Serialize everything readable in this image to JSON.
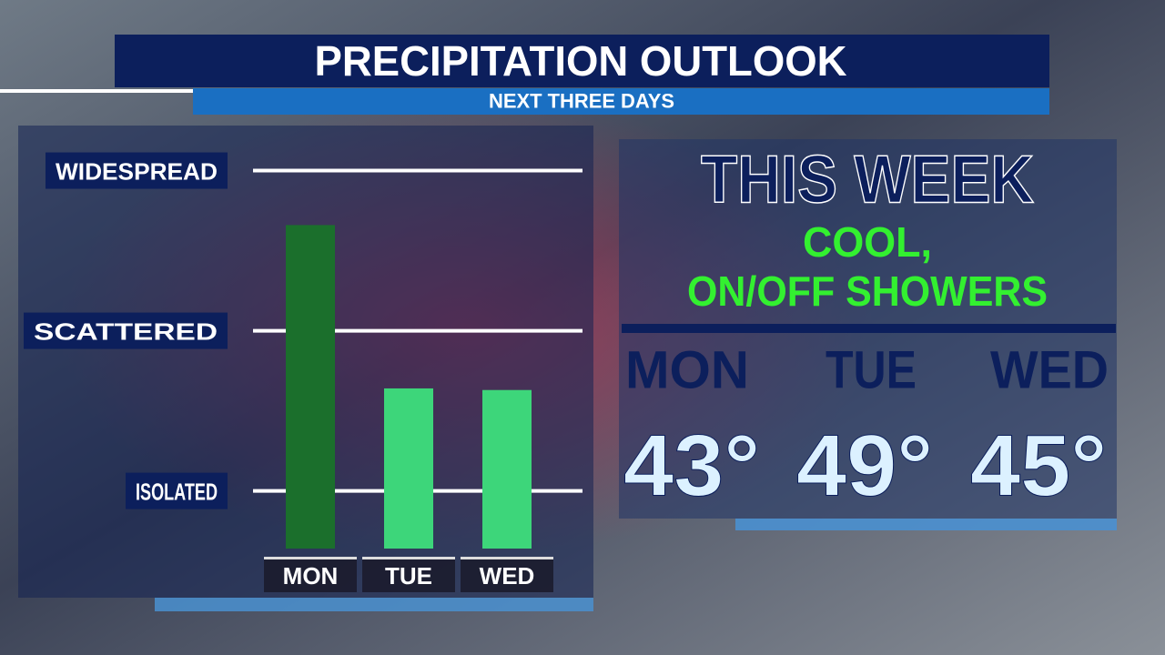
{
  "chart_data": {
    "type": "bar",
    "title": "PRECIPITATION OUTLOOK",
    "subtitle": "NEXT THREE DAYS",
    "categories": [
      "MON",
      "TUE",
      "WED"
    ],
    "values": [
      2.66,
      1.64,
      1.63
    ],
    "colors": [
      "#1b6f2c",
      "#3dd67a",
      "#3dd67a"
    ],
    "ylim": [
      0.64,
      3.27
    ],
    "yticks": [
      {
        "value": 1,
        "label": "ISOLATED"
      },
      {
        "value": 2,
        "label": "SCATTERED"
      },
      {
        "value": 3,
        "label": "WIDESPREAD"
      }
    ],
    "grid": true
  },
  "panel": {
    "title": "THIS WEEK",
    "lines": [
      "COOL,",
      "ON/OFF SHOWERS"
    ],
    "days": [
      "MON",
      "TUE",
      "WED"
    ],
    "temps": [
      "43°",
      "49°",
      "45°"
    ]
  }
}
